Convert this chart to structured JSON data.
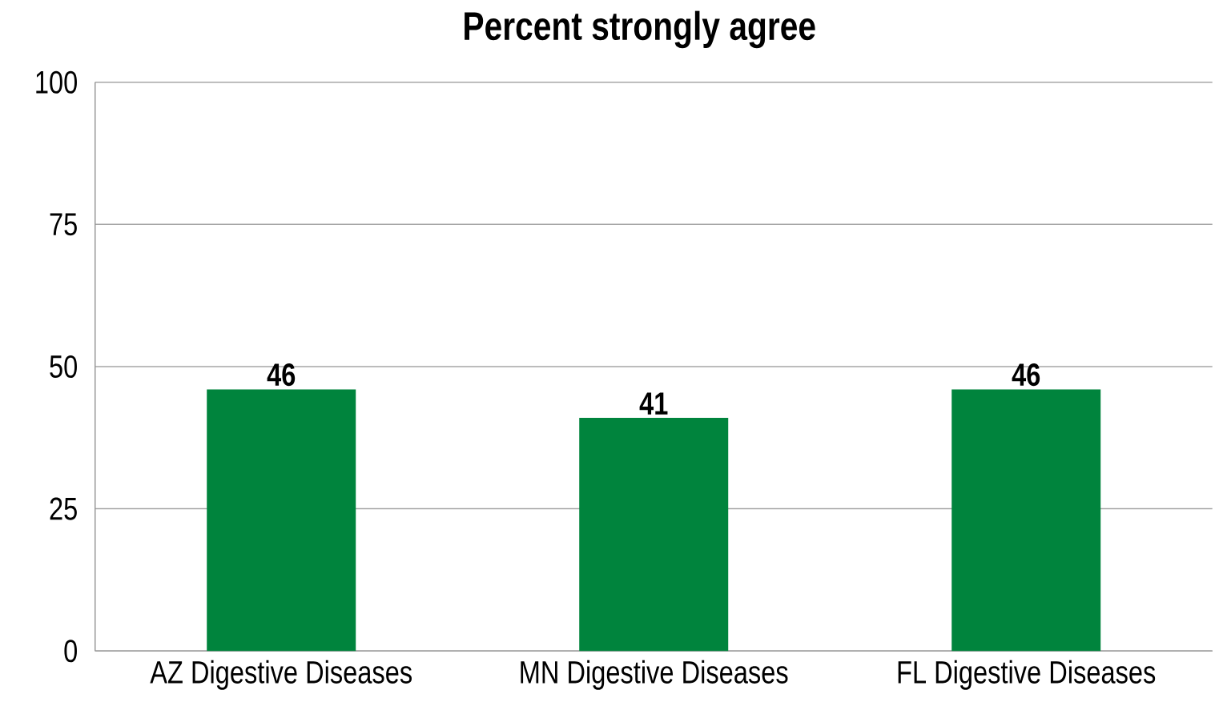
{
  "chart_data": {
    "type": "bar",
    "title": "Percent strongly agree",
    "categories": [
      "AZ Digestive Diseases",
      "MN Digestive Diseases",
      "FL Digestive Diseases"
    ],
    "values": [
      46,
      41,
      46
    ],
    "color": "#00843d",
    "ylim": [
      0,
      100
    ],
    "yticks": [
      0,
      25,
      50,
      75,
      100
    ],
    "grid": "y",
    "data_labels": true
  }
}
